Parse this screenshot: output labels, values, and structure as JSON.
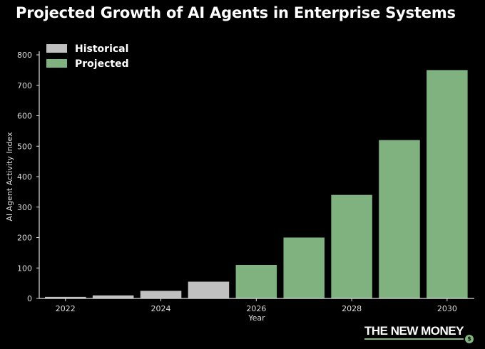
{
  "chart_data": {
    "type": "bar",
    "title": "Projected Growth of AI Agents in Enterprise Systems",
    "xlabel": "Year",
    "ylabel": "AI Agent Activity Index",
    "x": [
      2022,
      2023,
      2024,
      2025,
      2026,
      2027,
      2028,
      2029,
      2030
    ],
    "values": [
      5,
      10,
      25,
      55,
      110,
      200,
      340,
      520,
      750
    ],
    "groups": [
      "Historical",
      "Historical",
      "Historical",
      "Historical",
      "Projected",
      "Projected",
      "Projected",
      "Projected",
      "Projected"
    ],
    "xticks": [
      2022,
      2024,
      2026,
      2028,
      2030
    ],
    "yticks": [
      0,
      100,
      200,
      300,
      400,
      500,
      600,
      700,
      800
    ],
    "ylim": [
      0,
      800
    ],
    "xlim": [
      2021.45,
      2030.57
    ],
    "grid": false,
    "legend": {
      "placement": "top-left",
      "entries": [
        {
          "name": "Historical",
          "color": "#c0c0c0"
        },
        {
          "name": "Projected",
          "color": "#7fb27f"
        }
      ]
    }
  },
  "branding": {
    "logo_text": "THE NEW MONEY",
    "coin_symbol": "$"
  }
}
